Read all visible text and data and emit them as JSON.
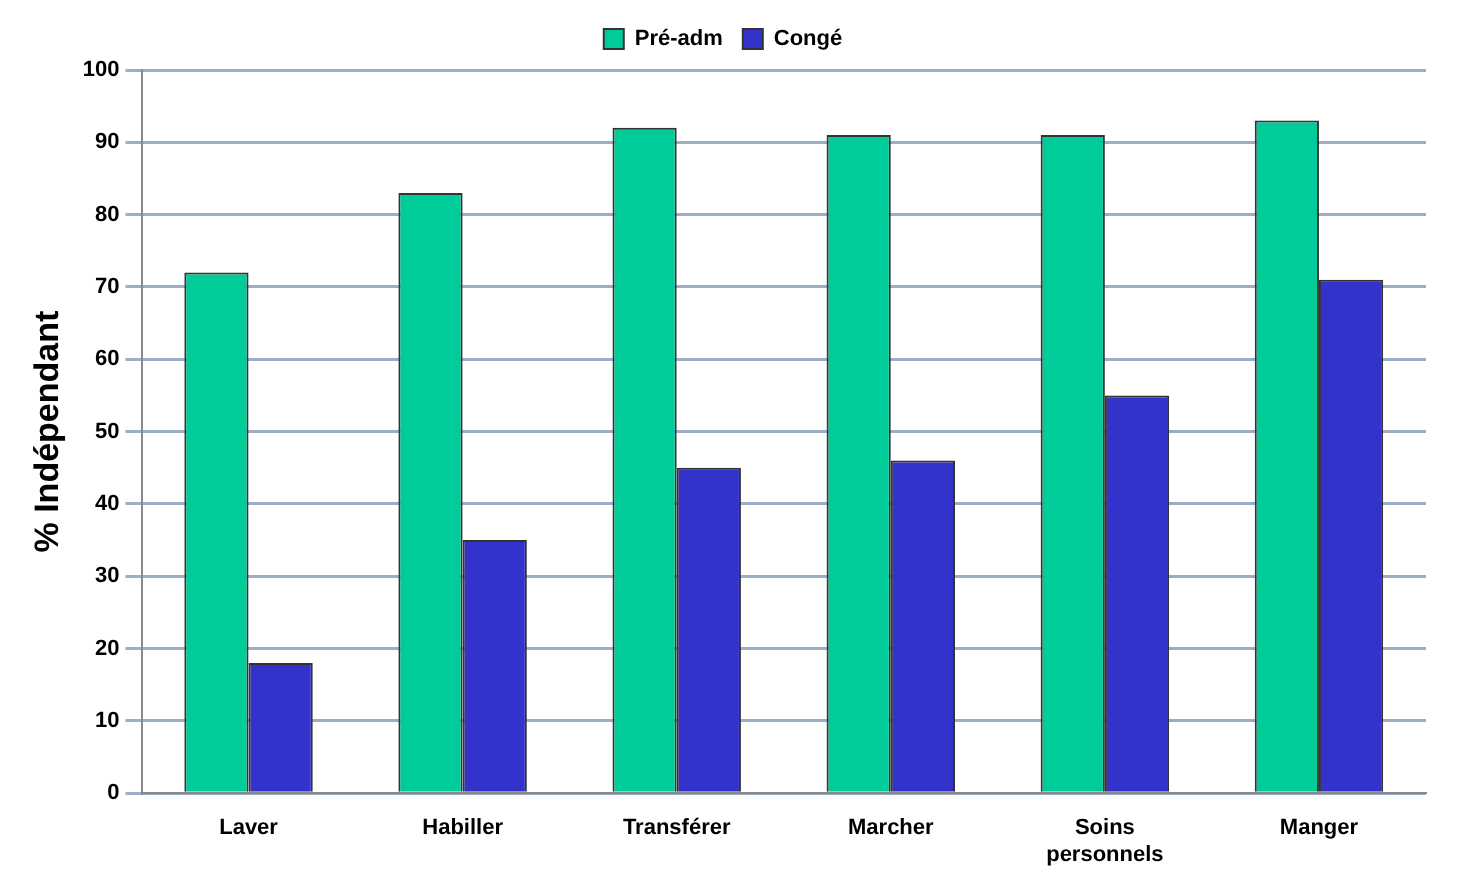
{
  "chart_data": {
    "type": "bar",
    "ylabel": "% Indépendant",
    "categories": [
      "Laver",
      "Habiller",
      "Transférer",
      "Marcher",
      "Soins personnels",
      "Manger"
    ],
    "series": [
      {
        "name": "Pré-adm",
        "color": "#00cc99",
        "values": [
          72,
          83,
          92,
          91,
          91,
          93
        ]
      },
      {
        "name": "Congé",
        "color": "#3333cc",
        "values": [
          18,
          35,
          45,
          46,
          55,
          71
        ]
      }
    ],
    "ylim": [
      0,
      100
    ],
    "yticks": [
      0,
      10,
      20,
      30,
      40,
      50,
      60,
      70,
      80,
      90,
      100
    ],
    "grid": "y",
    "legend": "top"
  }
}
